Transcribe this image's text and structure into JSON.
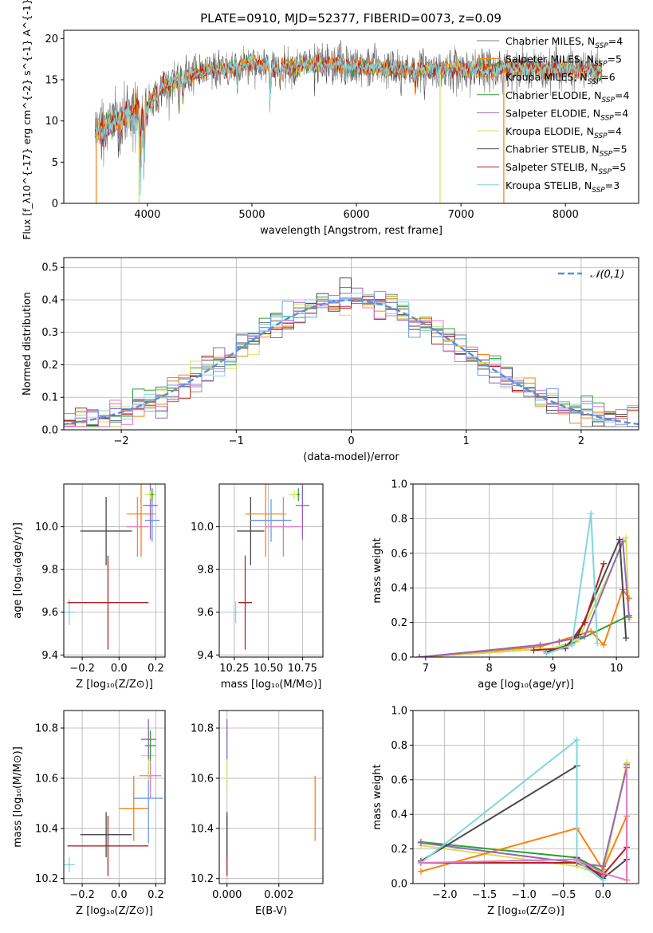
{
  "figure": {
    "title": "PLATE=0910, MJD=52377, FIBERID=0073, z=0.09"
  },
  "colors": {
    "Chabrier MILES": "#7f7f7f",
    "Salpeter MILES": "#ff7f0e",
    "Kroupa MILES": "#e07020",
    "Chabrier ELODIE": "#2ca02c",
    "Salpeter ELODIE": "#9467bd",
    "Kroupa ELODIE": "#d4e157",
    "Chabrier STELIB": "#4a4a4a",
    "Salpeter STELIB": "#b22222",
    "Kroupa STELIB": "#7ed6df",
    "extra1": "#e377c2",
    "extra2": "#6a9be6",
    "normal": "#5b8fd6"
  },
  "chart_data": [
    {
      "id": "spectrum",
      "type": "line",
      "xlabel": "wavelength [Angstrom, rest frame]",
      "ylabel": "Flux [f_λ10^{-17} erg cm^{-2} s^{-1} A^{-1}]",
      "xlim": [
        3200,
        8700
      ],
      "ylim": [
        0,
        21
      ],
      "xticks": [
        "4000",
        "5000",
        "6000",
        "7000",
        "8000"
      ],
      "yticks": [
        "0",
        "5",
        "10",
        "15",
        "20"
      ],
      "grid": false,
      "legend_position": "right",
      "legend": [
        {
          "label": "Chabrier MILES, N",
          "sub": "SSP",
          "suffix": "=4",
          "color": "#7f7f7f"
        },
        {
          "label": "Salpeter MILES, N",
          "sub": "SSP",
          "suffix": "=5",
          "color": "#ff7f0e"
        },
        {
          "label": "Kroupa MILES, N",
          "sub": "SSP",
          "suffix": "=6",
          "color": "#e07020"
        },
        {
          "label": "Chabrier ELODIE, N",
          "sub": "SSP",
          "suffix": "=4",
          "color": "#2ca02c"
        },
        {
          "label": "Salpeter ELODIE, N",
          "sub": "SSP",
          "suffix": "=4",
          "color": "#9467bd"
        },
        {
          "label": "Kroupa ELODIE, N",
          "sub": "SSP",
          "suffix": "=4",
          "color": "#d4e157"
        },
        {
          "label": "Chabrier STELIB, N",
          "sub": "SSP",
          "suffix": "=5",
          "color": "#4a4a4a"
        },
        {
          "label": "Salpeter STELIB, N",
          "sub": "SSP",
          "suffix": "=5",
          "color": "#b22222"
        },
        {
          "label": "Kroupa STELIB, N",
          "sub": "SSP",
          "suffix": "=3",
          "color": "#7ed6df"
        }
      ],
      "continuum": [
        [
          3500,
          8.5
        ],
        [
          3700,
          10
        ],
        [
          3900,
          11.5
        ],
        [
          4000,
          11.5
        ],
        [
          4100,
          13.8
        ],
        [
          4300,
          15
        ],
        [
          4500,
          15.8
        ],
        [
          4800,
          16.5
        ],
        [
          5000,
          17
        ],
        [
          5200,
          16.5
        ],
        [
          5500,
          16.8
        ],
        [
          5800,
          16.9
        ],
        [
          6100,
          16.5
        ],
        [
          6400,
          16.2
        ],
        [
          6700,
          16.3
        ],
        [
          7000,
          16.2
        ],
        [
          7300,
          16.3
        ],
        [
          7600,
          16.4
        ],
        [
          8000,
          16.2
        ],
        [
          8300,
          16.1
        ]
      ],
      "absorption_lines": [
        [
          3934,
          5
        ],
        [
          3969,
          6
        ],
        [
          4102,
          2
        ],
        [
          4304,
          3
        ],
        [
          4341,
          2
        ],
        [
          4861,
          2.5
        ],
        [
          5175,
          3
        ],
        [
          5270,
          1.5
        ],
        [
          5893,
          2
        ],
        [
          6563,
          2
        ]
      ],
      "drops": [
        {
          "x": 3510,
          "color": "#ff7f0e"
        },
        {
          "x": 3920,
          "color": "#d4e157"
        },
        {
          "x": 6800,
          "color": "#d4e157"
        },
        {
          "x": 7410,
          "color": "#ff7f0e"
        }
      ]
    },
    {
      "id": "residuals",
      "type": "bar",
      "xlabel": "(data-model)/error",
      "ylabel": "Normed distribution",
      "xlim": [
        -2.5,
        2.5
      ],
      "ylim": [
        0,
        0.53
      ],
      "xticks": [
        "−2",
        "−1",
        "0",
        "1",
        "2"
      ],
      "yticks": [
        "0.0",
        "0.1",
        "0.2",
        "0.3",
        "0.4",
        "0.5"
      ],
      "grid": true,
      "legend_position": "top-right",
      "legend": [
        {
          "label": "𝒩(0,1)",
          "color": "#5b8fd6",
          "style": "dashed"
        }
      ],
      "bin_width": 0.1
    },
    {
      "id": "age_vs_Z",
      "type": "scatter",
      "xlabel": "Z [log₁₀(Z/Z⊙)]",
      "ylabel": "age  [log₁₀(age/yr)]",
      "xlim": [
        -0.3,
        0.25
      ],
      "ylim": [
        9.39,
        10.2
      ],
      "xticks": [
        "−0.2",
        "0.0",
        "0.2"
      ],
      "yticks": [
        "9.4",
        "9.6",
        "9.8",
        "10.0"
      ],
      "points": [
        {
          "x": -0.27,
          "y": 9.6,
          "xerr": 0.03,
          "yerr": 0.06,
          "color": "#7ed6df"
        },
        {
          "x": -0.06,
          "y": 9.645,
          "xerr": 0.22,
          "yerr": 0.22,
          "color": "#b22222"
        },
        {
          "x": -0.07,
          "y": 9.98,
          "xerr": 0.14,
          "yerr": 0.16,
          "color": "#4a4a4a"
        },
        {
          "x": 0.1,
          "y": 10.0,
          "xerr": 0.06,
          "yerr": 0.14,
          "color": "#e377c2"
        },
        {
          "x": 0.12,
          "y": 10.06,
          "xerr": 0.08,
          "yerr": 0.2,
          "color": "#ff7f0e"
        },
        {
          "x": 0.18,
          "y": 10.03,
          "xerr": 0.04,
          "yerr": 0.1,
          "color": "#6a9be6"
        },
        {
          "x": 0.17,
          "y": 10.1,
          "xerr": 0.04,
          "yerr": 0.16,
          "color": "#9467bd"
        },
        {
          "x": 0.17,
          "y": 10.15,
          "xerr": 0.03,
          "yerr": 0.02,
          "color": "#d4e157"
        },
        {
          "x": 0.18,
          "y": 10.15,
          "xerr": 0.01,
          "yerr": 0.03,
          "color": "#2ca02c"
        }
      ]
    },
    {
      "id": "age_vs_mass",
      "type": "scatter",
      "xlabel": "mass [log₁₀(M/M⊙)]",
      "ylabel": "",
      "xlim": [
        10.14,
        10.9
      ],
      "ylim": [
        9.39,
        10.2
      ],
      "xticks": [
        "10.25",
        "10.50",
        "10.75"
      ],
      "yticks": [
        "9.4",
        "9.6",
        "9.8",
        "10.0"
      ],
      "points": [
        {
          "x": 10.26,
          "y": 9.6,
          "xerr": 0.02,
          "yerr": 0.05,
          "color": "#7ed6df"
        },
        {
          "x": 10.33,
          "y": 9.645,
          "xerr": 0.05,
          "yerr": 0.22,
          "color": "#b22222"
        },
        {
          "x": 10.37,
          "y": 9.98,
          "xerr": 0.1,
          "yerr": 0.16,
          "color": "#4a4a4a"
        },
        {
          "x": 10.61,
          "y": 10.0,
          "xerr": 0.13,
          "yerr": 0.14,
          "color": "#e377c2"
        },
        {
          "x": 10.48,
          "y": 10.06,
          "xerr": 0.15,
          "yerr": 0.2,
          "color": "#ff7f0e"
        },
        {
          "x": 10.52,
          "y": 10.03,
          "xerr": 0.15,
          "yerr": 0.1,
          "color": "#6a9be6"
        },
        {
          "x": 10.75,
          "y": 10.1,
          "xerr": 0.05,
          "yerr": 0.16,
          "color": "#9467bd"
        },
        {
          "x": 10.69,
          "y": 10.15,
          "xerr": 0.04,
          "yerr": 0.02,
          "color": "#d4e157"
        },
        {
          "x": 10.72,
          "y": 10.15,
          "xerr": 0.01,
          "yerr": 0.03,
          "color": "#2ca02c"
        }
      ]
    },
    {
      "id": "weight_vs_age",
      "type": "line",
      "xlabel": "age  [log₁₀(age/yr)]",
      "ylabel": "mass weight",
      "xlim": [
        6.8,
        10.35
      ],
      "ylim": [
        0,
        1.0
      ],
      "xticks": [
        "7",
        "8",
        "9",
        "10"
      ],
      "yticks": [
        "0.0",
        "0.2",
        "0.4",
        "0.6",
        "0.8",
        "1.0"
      ],
      "series": [
        {
          "color": "#2ca02c",
          "points": [
            [
              6.9,
              0
            ],
            [
              9.0,
              0.05
            ],
            [
              9.3,
              0.08
            ],
            [
              10.2,
              0.24
            ]
          ]
        },
        {
          "color": "#d4e157",
          "points": [
            [
              6.9,
              0
            ],
            [
              9.0,
              0.05
            ],
            [
              9.4,
              0.1
            ],
            [
              10.15,
              0.69
            ],
            [
              10.2,
              0.22
            ]
          ]
        },
        {
          "color": "#ff7f0e",
          "points": [
            [
              6.9,
              0
            ],
            [
              8.8,
              0.06
            ],
            [
              9.6,
              0.15
            ],
            [
              9.8,
              0.07
            ],
            [
              10.1,
              0.39
            ],
            [
              10.2,
              0.34
            ]
          ]
        },
        {
          "color": "#9467bd",
          "points": [
            [
              6.9,
              0
            ],
            [
              8.8,
              0.07
            ],
            [
              9.1,
              0.09
            ],
            [
              9.5,
              0.12
            ],
            [
              10.1,
              0.67
            ],
            [
              10.2,
              0.23
            ]
          ]
        },
        {
          "color": "#4a4a4a",
          "points": [
            [
              8.9,
              0.03
            ],
            [
              9.2,
              0.06
            ],
            [
              9.4,
              0.13
            ],
            [
              10.05,
              0.68
            ],
            [
              10.15,
              0.11
            ]
          ]
        },
        {
          "color": "#b22222",
          "points": [
            [
              8.7,
              0.04
            ],
            [
              9.2,
              0.05
            ],
            [
              9.5,
              0.2
            ],
            [
              9.8,
              0.54
            ]
          ]
        },
        {
          "color": "#7ed6df",
          "points": [
            [
              8.9,
              0.02
            ],
            [
              9.3,
              0.07
            ],
            [
              9.6,
              0.83
            ],
            [
              9.7,
              0.08
            ]
          ]
        }
      ]
    },
    {
      "id": "mass_vs_Z",
      "type": "scatter",
      "xlabel": "Z [log₁₀(Z/Z⊙)]",
      "ylabel": "mass [log₁₀(M/M⊙)]",
      "xlim": [
        -0.3,
        0.25
      ],
      "ylim": [
        10.18,
        10.87
      ],
      "xticks": [
        "−0.2",
        "0.0",
        "0.2"
      ],
      "yticks": [
        "10.2",
        "10.4",
        "10.6",
        "10.8"
      ],
      "points": [
        {
          "x": -0.27,
          "y": 10.255,
          "xerr": 0.03,
          "yerr": 0.03,
          "color": "#7ed6df"
        },
        {
          "x": -0.06,
          "y": 10.33,
          "xerr": 0.22,
          "yerr": 0.12,
          "color": "#b22222"
        },
        {
          "x": -0.07,
          "y": 10.375,
          "xerr": 0.14,
          "yerr": 0.09,
          "color": "#4a4a4a"
        },
        {
          "x": 0.08,
          "y": 10.48,
          "xerr": 0.08,
          "yerr": 0.13,
          "color": "#ff7f0e"
        },
        {
          "x": 0.16,
          "y": 10.52,
          "xerr": 0.08,
          "yerr": 0.18,
          "color": "#6a9be6"
        },
        {
          "x": 0.17,
          "y": 10.61,
          "xerr": 0.06,
          "yerr": 0.09,
          "color": "#e377c2"
        },
        {
          "x": 0.16,
          "y": 10.69,
          "xerr": 0.04,
          "yerr": 0.1,
          "color": "#d4e157"
        },
        {
          "x": 0.17,
          "y": 10.73,
          "xerr": 0.03,
          "yerr": 0.06,
          "color": "#2ca02c"
        },
        {
          "x": 0.16,
          "y": 10.755,
          "xerr": 0.04,
          "yerr": 0.08,
          "color": "#9467bd"
        }
      ]
    },
    {
      "id": "mass_vs_ebv",
      "type": "scatter",
      "xlabel": "E(B-V)",
      "ylabel": "",
      "xlim": [
        -0.0003,
        0.0037
      ],
      "ylim": [
        10.18,
        10.87
      ],
      "xticks": [
        "0.000",
        "0.002"
      ],
      "yticks": [
        "10.2",
        "10.4",
        "10.6",
        "10.8"
      ],
      "points": [
        {
          "x": 0.0,
          "y": 10.255,
          "xerr": 0.0,
          "yerr": 0.03,
          "color": "#7ed6df"
        },
        {
          "x": 0.0,
          "y": 10.33,
          "xerr": 0.0,
          "yerr": 0.12,
          "color": "#b22222"
        },
        {
          "x": 0.0,
          "y": 10.375,
          "xerr": 0.0,
          "yerr": 0.09,
          "color": "#4a4a4a"
        },
        {
          "x": 0.0,
          "y": 10.69,
          "xerr": 0.0,
          "yerr": 0.12,
          "color": "#d4e157"
        },
        {
          "x": 0.0,
          "y": 10.755,
          "xerr": 0.0,
          "yerr": 0.08,
          "color": "#9467bd"
        },
        {
          "x": 0.0034,
          "y": 10.48,
          "xerr": 0.0,
          "yerr": 0.13,
          "color": "#ff7f0e"
        }
      ]
    },
    {
      "id": "weight_vs_Z",
      "type": "line",
      "xlabel": "Z [log₁₀(Z/Z⊙)]",
      "ylabel": "mass weight",
      "xlim": [
        -2.4,
        0.45
      ],
      "ylim": [
        0,
        1.0
      ],
      "xticks": [
        "−2.0",
        "−1.5",
        "−1.0",
        "−0.5",
        "0.0"
      ],
      "yticks": [
        "0.0",
        "0.2",
        "0.4",
        "0.6",
        "0.8",
        "1.0"
      ],
      "series": [
        {
          "color": "#2ca02c",
          "points": [
            [
              -2.3,
              0.24
            ],
            [
              -0.33,
              0.15
            ],
            [
              0.0,
              0.07
            ],
            [
              0.3,
              0.69
            ]
          ]
        },
        {
          "color": "#d4e157",
          "points": [
            [
              -2.3,
              0.22
            ],
            [
              -0.33,
              0.1
            ],
            [
              0.0,
              0.05
            ],
            [
              0.3,
              0.7
            ]
          ]
        },
        {
          "color": "#ff7f0e",
          "points": [
            [
              -2.3,
              0.07
            ],
            [
              -0.33,
              0.32
            ],
            [
              0.0,
              0.08
            ],
            [
              0.3,
              0.39
            ],
            [
              0.3,
              0.02
            ]
          ]
        },
        {
          "color": "#9467bd",
          "points": [
            [
              -2.3,
              0.235
            ],
            [
              -0.33,
              0.12
            ],
            [
              0.0,
              0.1
            ],
            [
              0.3,
              0.67
            ]
          ]
        },
        {
          "color": "#4a4a4a",
          "points": [
            [
              -2.3,
              0.13
            ],
            [
              -0.33,
              0.68
            ],
            [
              -0.33,
              0.15
            ],
            [
              0.0,
              0.03
            ],
            [
              0.3,
              0.14
            ]
          ]
        },
        {
          "color": "#b22222",
          "points": [
            [
              -2.3,
              0.12
            ],
            [
              -0.33,
              0.12
            ],
            [
              0.0,
              0.05
            ],
            [
              0.3,
              0.21
            ]
          ]
        },
        {
          "color": "#7ed6df",
          "points": [
            [
              -2.3,
              0.12
            ],
            [
              -0.33,
              0.83
            ],
            [
              -0.33,
              0.13
            ],
            [
              0.0,
              0.02
            ]
          ]
        },
        {
          "color": "#e377c2",
          "points": [
            [
              -2.3,
              0.12
            ],
            [
              -0.33,
              0.14
            ],
            [
              0.0,
              0.06
            ],
            [
              0.3,
              0.02
            ],
            [
              0.3,
              0.68
            ]
          ]
        }
      ]
    }
  ]
}
